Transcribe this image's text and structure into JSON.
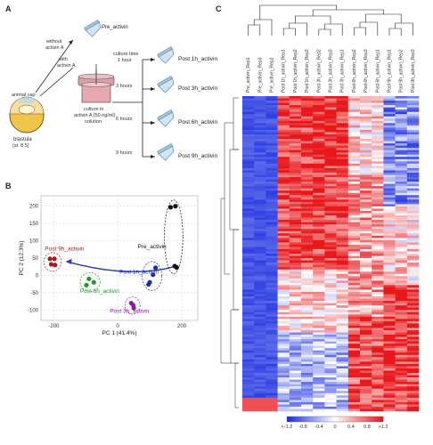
{
  "panel_a": {
    "label": "A",
    "animal_cap_label": "animal cap",
    "blastula_label": "blastula",
    "stage_label": "(st. 8.5)",
    "without_activin_label": [
      "without",
      "activin A"
    ],
    "with_activin_label": [
      "with",
      "activin A"
    ],
    "pre_activin_label": "Pre_activin",
    "culture_dish_label": [
      "culture in",
      "activin A (50 ng/ml)",
      "solution"
    ],
    "culture_time_label": [
      "culture time",
      "1 hour"
    ],
    "branches": [
      {
        "time": "",
        "label": "Post 1h_activin"
      },
      {
        "time": "3 hours",
        "label": "Post 3h_activin"
      },
      {
        "time": "6 hours",
        "label": "Post 6h_activin"
      },
      {
        "time": "9 hours",
        "label": "Post 9h_activin"
      }
    ]
  },
  "panel_b": {
    "label": "B",
    "chart_data": {
      "type": "scatter",
      "xlabel": "PC 1 (41.4%)",
      "ylabel": "PC 2 (12.3%)",
      "xlim": [
        -240,
        250
      ],
      "ylim": [
        -130,
        230
      ],
      "xticks": [
        -200,
        0,
        200
      ],
      "yticks": [
        -100,
        -50,
        0,
        50,
        100,
        150,
        200
      ],
      "groups": [
        {
          "name": "Pre_activin",
          "color": "#111111",
          "points": [
            [
              165,
              197
            ],
            [
              180,
              200
            ],
            [
              178,
              27
            ],
            [
              184,
              23
            ]
          ]
        },
        {
          "name": "Post 1h_activin",
          "color": "#1a2fb0",
          "points": [
            [
              118,
              22
            ],
            [
              110,
              2
            ],
            [
              100,
              -20
            ],
            [
              96,
              -26
            ]
          ]
        },
        {
          "name": "Post 3h_activin",
          "color": "#8a1fa0",
          "points": [
            [
              42,
              -80
            ],
            [
              48,
              -86
            ],
            [
              50,
              -94
            ]
          ]
        },
        {
          "name": "Post 6h_activin",
          "color": "#1f9a2a",
          "points": [
            [
              -90,
              -10
            ],
            [
              -75,
              -20
            ],
            [
              -98,
              -28
            ]
          ]
        },
        {
          "name": "Post 9h_activin",
          "color": "#b01818",
          "points": [
            [
              -212,
              48
            ],
            [
              -198,
              48
            ],
            [
              -208,
              32
            ],
            [
              -196,
              30
            ]
          ]
        }
      ],
      "labels": [
        {
          "text": "Pre_activin",
          "color": "#111111",
          "x": 62,
          "y": 78
        },
        {
          "text": "Post 9h_activin",
          "color": "#b01818",
          "x": -228,
          "y": 72
        },
        {
          "text": "Post 1h_activin",
          "color": "#1a2fb0",
          "x": 5,
          "y": 5
        },
        {
          "text": "Post 6h_activin",
          "color": "#1f9a2a",
          "x": -118,
          "y": -50
        },
        {
          "text": "Post 3h_activin",
          "color": "#8a1fa0",
          "x": -25,
          "y": -108
        }
      ]
    }
  },
  "panel_c": {
    "label": "C",
    "columns": [
      "Pre_activin_Rep1",
      "Pre_activin_Rep3",
      "Pre_activin_Rep2",
      "Post 1h_activin_Rep1",
      "Post 1h_activin_Rep2",
      "Post 1h_activin_Rep3",
      "Post 3h_activin_Rep2",
      "Post 3h_activin_Rep3",
      "Post 3h_activin_Rep1",
      "Post 6h_activin_Rep2",
      "Post 6h_activin_Rep3",
      "Post 6h_activin_Rep1",
      "Post 9h_activin_Rep1",
      "Post 9h_activin_Rep2",
      "Post 9h_activin_Rep3"
    ],
    "legend_ticks": [
      "<-1.2",
      "-0.8",
      "-0.4",
      "0",
      "0.4",
      "0.8",
      ">1.2"
    ],
    "colors": {
      "low": "#1a2ee0",
      "mid": "#ffffff",
      "high": "#e8171a"
    }
  }
}
